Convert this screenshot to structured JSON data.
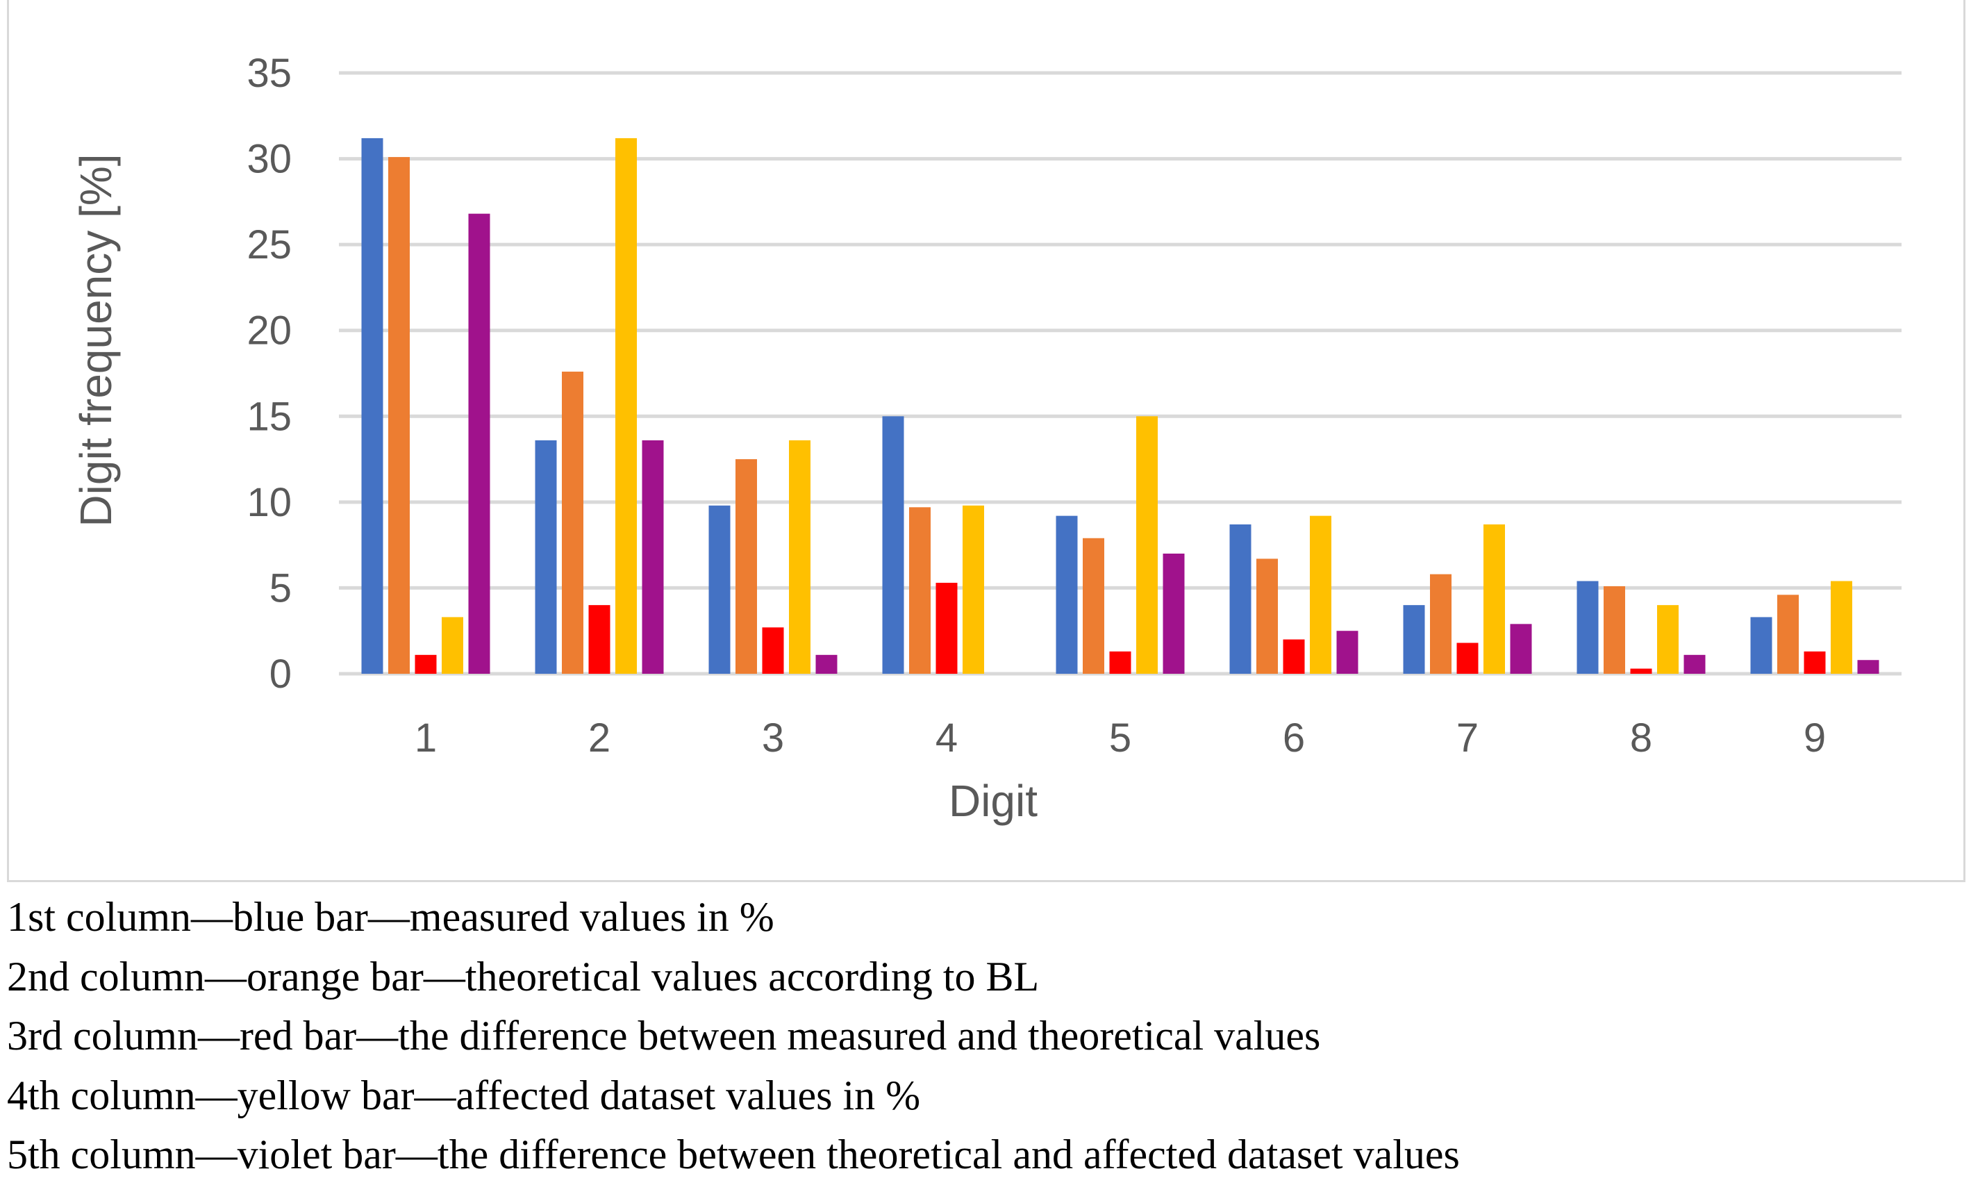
{
  "chart_data": {
    "type": "bar",
    "title": "",
    "xlabel": "Digit",
    "ylabel": "Digit frequency [%]",
    "ylim": [
      0,
      35
    ],
    "yticks": [
      0,
      5,
      10,
      15,
      20,
      25,
      30,
      35
    ],
    "grid": true,
    "categories": [
      "1",
      "2",
      "3",
      "4",
      "5",
      "6",
      "7",
      "8",
      "9"
    ],
    "series": [
      {
        "name": "measured values in %",
        "color": "#4472C4",
        "values": [
          31.2,
          13.6,
          9.8,
          15.0,
          9.2,
          8.7,
          4.0,
          5.4,
          3.3
        ]
      },
      {
        "name": "theoretical values according to BL",
        "color": "#ED7D31",
        "values": [
          30.1,
          17.6,
          12.5,
          9.7,
          7.9,
          6.7,
          5.8,
          5.1,
          4.6
        ]
      },
      {
        "name": "the difference between measured and theoretical values",
        "color": "#FF0000",
        "values": [
          1.1,
          4.0,
          2.7,
          5.3,
          1.3,
          2.0,
          1.8,
          0.3,
          1.3
        ]
      },
      {
        "name": "affected dataset values in %",
        "color": "#FFC000",
        "values": [
          3.3,
          31.2,
          13.6,
          9.8,
          15.0,
          9.2,
          8.7,
          4.0,
          5.4
        ]
      },
      {
        "name": "the difference between theoretical and affected dataset values",
        "color": "#A0128C",
        "values": [
          26.8,
          13.6,
          1.1,
          0.0,
          7.0,
          2.5,
          2.9,
          1.1,
          0.8
        ]
      }
    ]
  },
  "caption": {
    "lines": [
      "1st column—blue bar—measured values in %",
      "2nd column—orange bar—theoretical values according to BL",
      "3rd column—red bar—the difference between measured and theoretical values",
      "4th column—yellow bar—affected dataset values in %",
      "5th column—violet bar—the difference between theoretical and affected dataset values"
    ]
  },
  "colors": {
    "grid": "#d9d9d9",
    "axis_text": "#595959"
  }
}
